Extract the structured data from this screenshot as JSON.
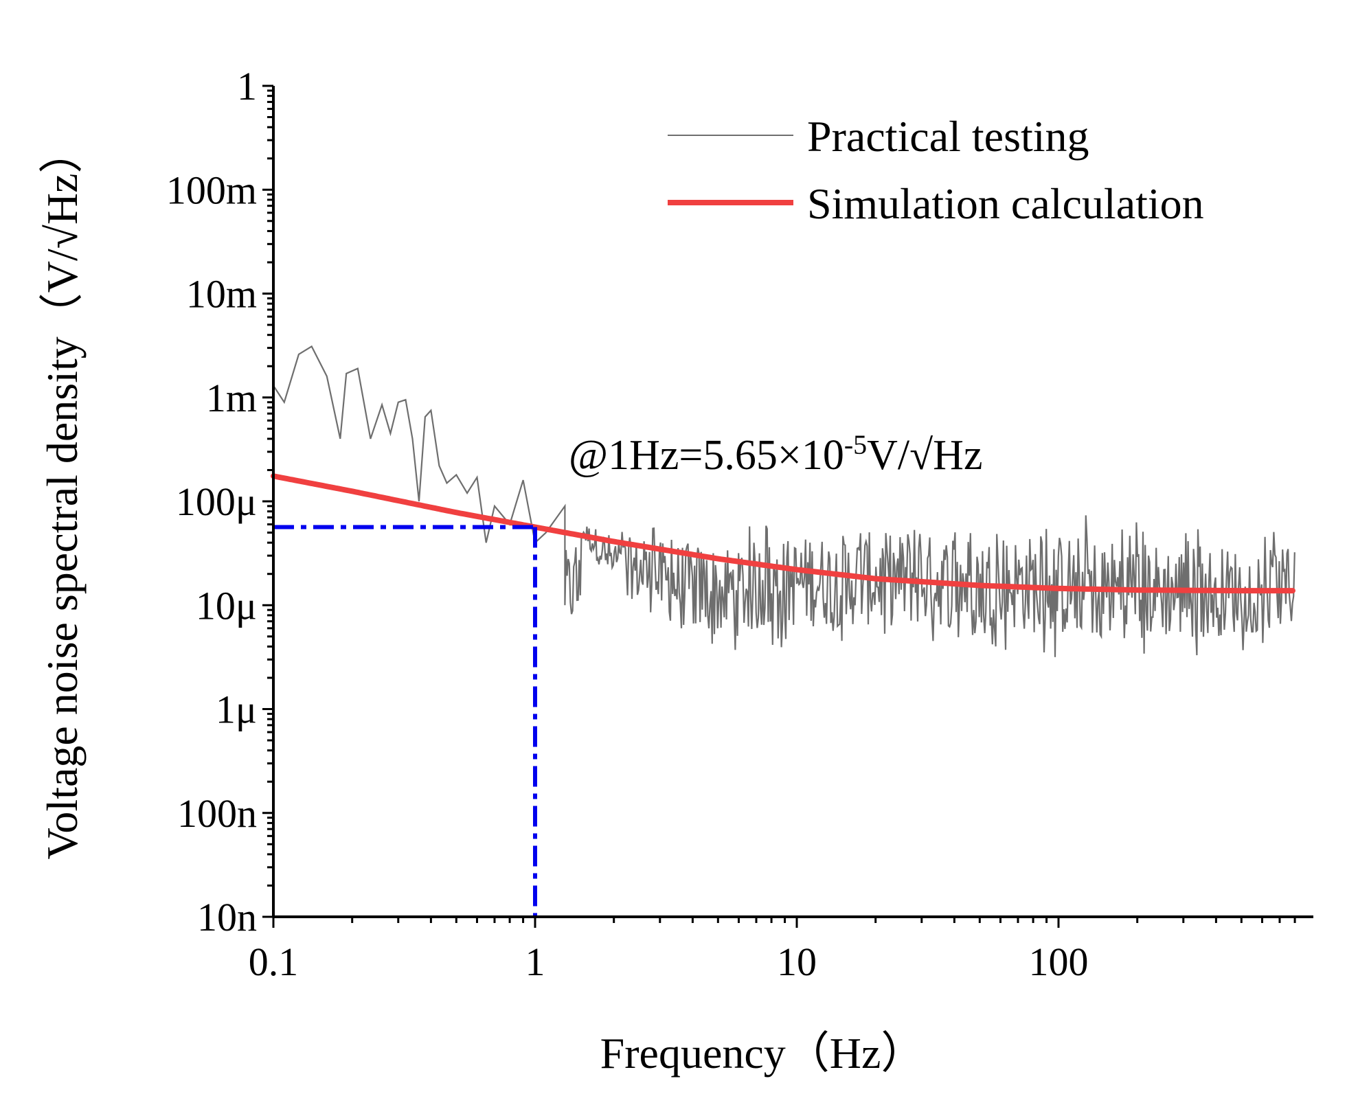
{
  "chart_data": {
    "type": "line",
    "title": "",
    "xlabel": "Frequency（Hz）",
    "ylabel": "Voltage noise spectral density（V/√Hz）",
    "xscale": "log",
    "yscale": "log",
    "xlim": [
      0.1,
      800
    ],
    "ylim": [
      1e-08,
      1
    ],
    "x_ticks": [
      {
        "value": 0.1,
        "label": "0.1"
      },
      {
        "value": 1,
        "label": "1"
      },
      {
        "value": 10,
        "label": "10"
      },
      {
        "value": 100,
        "label": "100"
      }
    ],
    "y_ticks": [
      {
        "value": 1,
        "label": "1"
      },
      {
        "value": 0.1,
        "label": "100m"
      },
      {
        "value": 0.01,
        "label": "10m"
      },
      {
        "value": 0.001,
        "label": "1m"
      },
      {
        "value": 0.0001,
        "label": "100μ"
      },
      {
        "value": 1e-05,
        "label": "10μ"
      },
      {
        "value": 1e-06,
        "label": "1μ"
      },
      {
        "value": 1e-07,
        "label": "100n"
      },
      {
        "value": 1e-08,
        "label": "10n"
      }
    ],
    "series": [
      {
        "name": "Practical testing",
        "color": "#6e6e6e",
        "style": "thin-line-noisy",
        "x": [
          0.1,
          0.11,
          0.125,
          0.14,
          0.16,
          0.18,
          0.19,
          0.21,
          0.235,
          0.26,
          0.28,
          0.3,
          0.32,
          0.34,
          0.36,
          0.38,
          0.4,
          0.43,
          0.46,
          0.5,
          0.55,
          0.6,
          0.65,
          0.7,
          0.8,
          0.9,
          1.0,
          1.1,
          1.3,
          1.5,
          2,
          3,
          5,
          10,
          20,
          50,
          100,
          200,
          500,
          800
        ],
        "values": [
          0.0013,
          0.0009,
          0.0026,
          0.0031,
          0.0016,
          0.0004,
          0.0017,
          0.0019,
          0.0004,
          0.00085,
          0.00045,
          0.0009,
          0.00095,
          0.0004,
          0.0001,
          0.00065,
          0.00075,
          0.00022,
          0.00015,
          0.00018,
          0.00012,
          0.00017,
          4e-05,
          9e-05,
          6e-05,
          0.00016,
          4e-05,
          5e-05,
          9e-05,
          3e-05,
          2.5e-05,
          2e-05,
          1.5e-05,
          1.2e-05,
          1.2e-05,
          1.1e-05,
          1.1e-05,
          1.1e-05,
          1.1e-05,
          1.1e-05
        ],
        "noise_band_lower": [
          4e-05,
          1.2e-05,
          5e-06,
          3e-06,
          4e-06,
          4e-06,
          4e-06,
          3e-06,
          3e-06,
          4e-06
        ],
        "noise_band_upper": [
          7e-05,
          6e-05,
          6e-05,
          6e-05,
          7e-05,
          8e-05,
          7e-05,
          8e-05,
          6e-05,
          5e-05
        ],
        "noise_band_x": [
          1.5,
          2,
          3,
          5,
          10,
          20,
          50,
          100,
          300,
          800
        ]
      },
      {
        "name": "Simulation calculation",
        "color": "#f04040",
        "style": "thick-line",
        "x": [
          0.1,
          0.2,
          0.5,
          1,
          2,
          5,
          10,
          20,
          50,
          100,
          200,
          500,
          800
        ],
        "values": [
          0.000175,
          0.000125,
          7.8e-05,
          5.65e-05,
          4.1e-05,
          2.8e-05,
          2.2e-05,
          1.8e-05,
          1.55e-05,
          1.45e-05,
          1.4e-05,
          1.38e-05,
          1.38e-05
        ]
      }
    ],
    "reference_lines": {
      "color": "#0000ee",
      "style": "dash-dot",
      "x": 1,
      "y": 5.65e-05
    },
    "legend": {
      "placement": "top-right",
      "entries": [
        "Practical testing",
        "Simulation calculation"
      ]
    },
    "annotation": {
      "text": "@1Hz=5.65×10",
      "exponent": "-5",
      "unit": "V/√Hz"
    }
  }
}
